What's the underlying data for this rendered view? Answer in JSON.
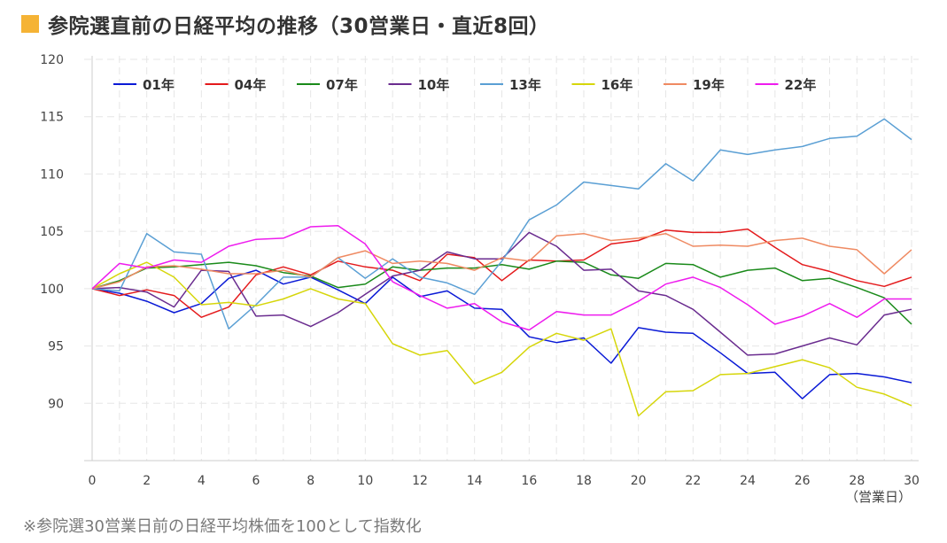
{
  "title": "参院選直前の日経平均の推移（30営業日・直近8回）",
  "footnote": "※参院選30営業日前の日経平均株価を100として指数化",
  "colors": {
    "title_square": "#f5b335"
  },
  "chart_data": {
    "type": "line",
    "title": "参院選直前の日経平均の推移（30営業日・直近8回）",
    "xlabel": "（営業日）",
    "ylabel": "",
    "xlim": [
      0,
      30
    ],
    "ylim": [
      85,
      120
    ],
    "xticks": [
      0,
      2,
      4,
      6,
      8,
      10,
      12,
      14,
      16,
      18,
      20,
      22,
      24,
      26,
      28,
      30
    ],
    "yticks": [
      90,
      95,
      100,
      105,
      110,
      115,
      120
    ],
    "grid": true,
    "legend_position": "top",
    "x": [
      0,
      1,
      2,
      3,
      4,
      5,
      6,
      7,
      8,
      9,
      10,
      11,
      12,
      13,
      14,
      15,
      16,
      17,
      18,
      19,
      20,
      21,
      22,
      23,
      24,
      25,
      26,
      27,
      28,
      29,
      30
    ],
    "series": [
      {
        "name": "01年",
        "color": "#0a1ad6",
        "values": [
          100,
          99.6,
          98.9,
          97.9,
          98.7,
          100.9,
          101.6,
          100.4,
          101.0,
          99.9,
          98.7,
          101.0,
          99.3,
          99.8,
          98.3,
          98.2,
          95.8,
          95.3,
          95.7,
          93.5,
          96.6,
          96.2,
          96.1,
          94.4,
          92.6,
          92.7,
          90.4,
          92.5,
          92.6,
          92.3,
          91.8
        ]
      },
      {
        "name": "04年",
        "color": "#e41a1c",
        "values": [
          100,
          99.4,
          99.9,
          99.4,
          97.5,
          98.4,
          101.2,
          101.9,
          101.2,
          102.4,
          101.9,
          101.6,
          100.7,
          103.0,
          102.7,
          100.7,
          102.5,
          102.4,
          102.5,
          103.9,
          104.2,
          105.1,
          104.9,
          104.9,
          105.2,
          103.6,
          102.1,
          101.5,
          100.7,
          100.2,
          101.0
        ]
      },
      {
        "name": "07年",
        "color": "#1a8a1a",
        "values": [
          100,
          100.7,
          101.8,
          101.9,
          102.1,
          102.3,
          102.0,
          101.4,
          101.1,
          100.1,
          100.4,
          101.9,
          101.6,
          101.8,
          101.8,
          102.1,
          101.7,
          102.4,
          102.3,
          101.2,
          100.9,
          102.2,
          102.1,
          101.0,
          101.6,
          101.8,
          100.7,
          100.9,
          100.1,
          99.2,
          96.9
        ]
      },
      {
        "name": "10年",
        "color": "#6a2c8f",
        "values": [
          100,
          100.1,
          99.7,
          98.4,
          101.6,
          101.5,
          97.6,
          97.7,
          96.7,
          97.9,
          99.5,
          101.1,
          101.6,
          103.2,
          102.6,
          102.6,
          104.9,
          103.7,
          101.6,
          101.7,
          99.8,
          99.4,
          98.2,
          96.2,
          94.2,
          94.3,
          95.0,
          95.7,
          95.1,
          97.7,
          98.2
        ]
      },
      {
        "name": "13年",
        "color": "#5a9fd4",
        "values": [
          100,
          99.8,
          104.8,
          103.2,
          103.0,
          96.5,
          98.6,
          101.0,
          101.0,
          102.7,
          100.9,
          102.6,
          101.0,
          100.5,
          99.5,
          102.4,
          106.0,
          107.3,
          109.3,
          109.0,
          108.7,
          110.9,
          109.4,
          112.1,
          111.7,
          112.1,
          112.4,
          113.1,
          113.3,
          114.8,
          113.0
        ]
      },
      {
        "name": "16年",
        "color": "#d6d60a",
        "values": [
          100,
          101.3,
          102.3,
          101.0,
          98.6,
          98.8,
          98.5,
          99.1,
          100.0,
          99.1,
          98.7,
          95.2,
          94.2,
          94.6,
          91.7,
          92.7,
          94.9,
          96.1,
          95.5,
          96.5,
          88.9,
          91.0,
          91.1,
          92.5,
          92.6,
          93.2,
          93.8,
          93.1,
          91.4,
          90.8,
          89.8
        ]
      },
      {
        "name": "19年",
        "color": "#ef8a62",
        "values": [
          100,
          100.6,
          101.9,
          102.0,
          101.7,
          101.3,
          101.3,
          101.6,
          101.0,
          102.7,
          103.3,
          102.2,
          102.4,
          102.2,
          101.6,
          102.7,
          102.4,
          104.6,
          104.8,
          104.2,
          104.4,
          104.8,
          103.7,
          103.8,
          103.7,
          104.2,
          104.4,
          103.7,
          103.4,
          101.3,
          103.4
        ]
      },
      {
        "name": "22年",
        "color": "#ee1cee",
        "values": [
          100,
          102.2,
          101.8,
          102.5,
          102.3,
          103.7,
          104.3,
          104.4,
          105.4,
          105.5,
          103.9,
          100.6,
          99.4,
          98.3,
          98.7,
          97.1,
          96.4,
          98.0,
          97.7,
          97.7,
          98.9,
          100.4,
          101.0,
          100.1,
          98.6,
          96.9,
          97.6,
          98.7,
          97.5,
          99.1,
          99.1
        ]
      }
    ]
  }
}
